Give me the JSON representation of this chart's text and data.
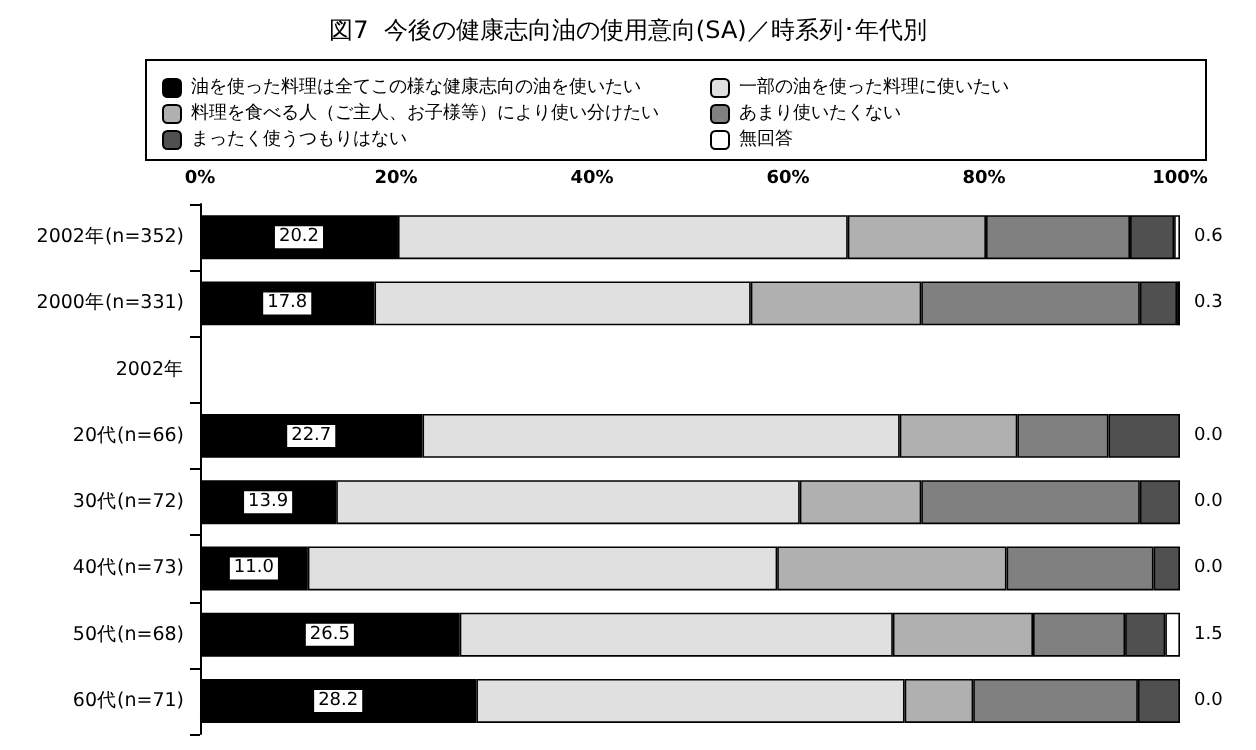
{
  "chart_data": {
    "type": "bar",
    "orientation": "horizontal",
    "stacked": true,
    "title": "図7  今後の健康志向油の使用意向(SA)／時系列･年代別",
    "categories": [
      "2002年(n=352)",
      "2000年(n=331)",
      "2002年",
      "20代(n=66)",
      "30代(n=72)",
      "40代(n=73)",
      "50代(n=68)",
      "60代(n=71)"
    ],
    "series": [
      {
        "name": "油を使った料理は全てこの様な健康志向の油を使いたい",
        "color": "#000000",
        "values": [
          20.2,
          17.8,
          null,
          22.7,
          13.9,
          11.0,
          26.5,
          28.2
        ],
        "value_labels": [
          "20.2",
          "17.8",
          null,
          "22.7",
          "13.9",
          "11.0",
          "26.5",
          "28.2"
        ]
      },
      {
        "name": "一部の油を使った料理に使いたい",
        "color": "#e0e0e0",
        "values": [
          45.9,
          38.4,
          null,
          48.7,
          47.3,
          47.9,
          44.2,
          43.7
        ]
      },
      {
        "name": "料理を食べる人（ご主人、お子様等）により使い分けたい",
        "color": "#b0b0b0",
        "values": [
          14.1,
          17.4,
          null,
          12.0,
          12.4,
          23.4,
          14.3,
          7.0
        ]
      },
      {
        "name": "あまり使いたくない",
        "color": "#808080",
        "values": [
          14.7,
          22.3,
          null,
          9.3,
          22.3,
          15.0,
          9.4,
          16.8
        ]
      },
      {
        "name": "まったく使うつもりはない",
        "color": "#505050",
        "values": [
          4.5,
          3.8,
          null,
          7.3,
          4.1,
          2.7,
          4.1,
          4.3
        ]
      },
      {
        "name": "無回答",
        "color": "#ffffff",
        "values": [
          0.6,
          0.3,
          null,
          0.0,
          0.0,
          0.0,
          1.5,
          0.0
        ],
        "value_labels": [
          "0.6",
          "0.3",
          null,
          "0.0",
          "0.0",
          "0.0",
          "1.5",
          "0.0"
        ]
      }
    ],
    "xlim": [
      0,
      100
    ],
    "xticks": [
      {
        "value": 0,
        "label": "0%"
      },
      {
        "value": 20,
        "label": "20%"
      },
      {
        "value": 40,
        "label": "40%"
      },
      {
        "value": 60,
        "label": "60%"
      },
      {
        "value": 80,
        "label": "80%"
      },
      {
        "value": 100,
        "label": "100%"
      }
    ],
    "grid": false,
    "legend": "top"
  }
}
